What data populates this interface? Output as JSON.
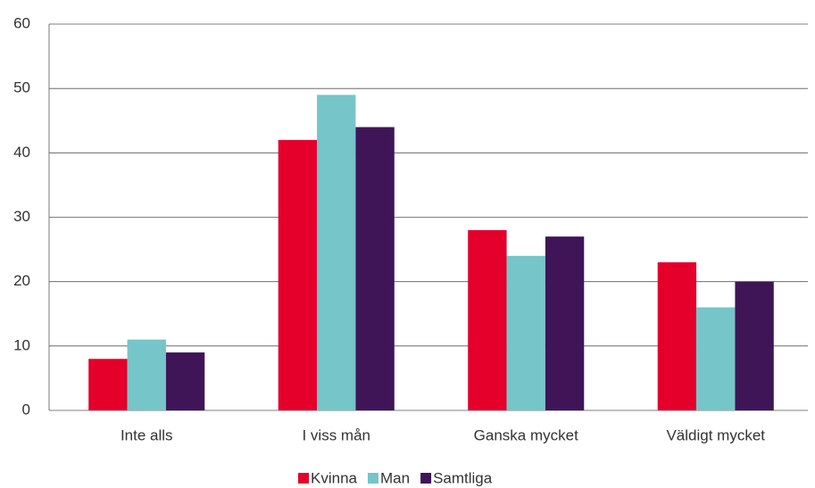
{
  "chart_data": {
    "type": "bar",
    "categories": [
      "Inte alls",
      "I viss mån",
      "Ganska mycket",
      "Väldigt mycket"
    ],
    "series": [
      {
        "name": "Kvinna",
        "color": "#e4002b",
        "values": [
          8,
          42,
          28,
          23
        ]
      },
      {
        "name": "Man",
        "color": "#76c5c8",
        "values": [
          11,
          49,
          24,
          16
        ]
      },
      {
        "name": "Samtliga",
        "color": "#3f1558",
        "values": [
          9,
          44,
          27,
          20
        ]
      }
    ],
    "ylim": [
      0,
      60
    ],
    "yticks": [
      0,
      10,
      20,
      30,
      40,
      50,
      60
    ],
    "grid": true,
    "legend": "bottom"
  }
}
